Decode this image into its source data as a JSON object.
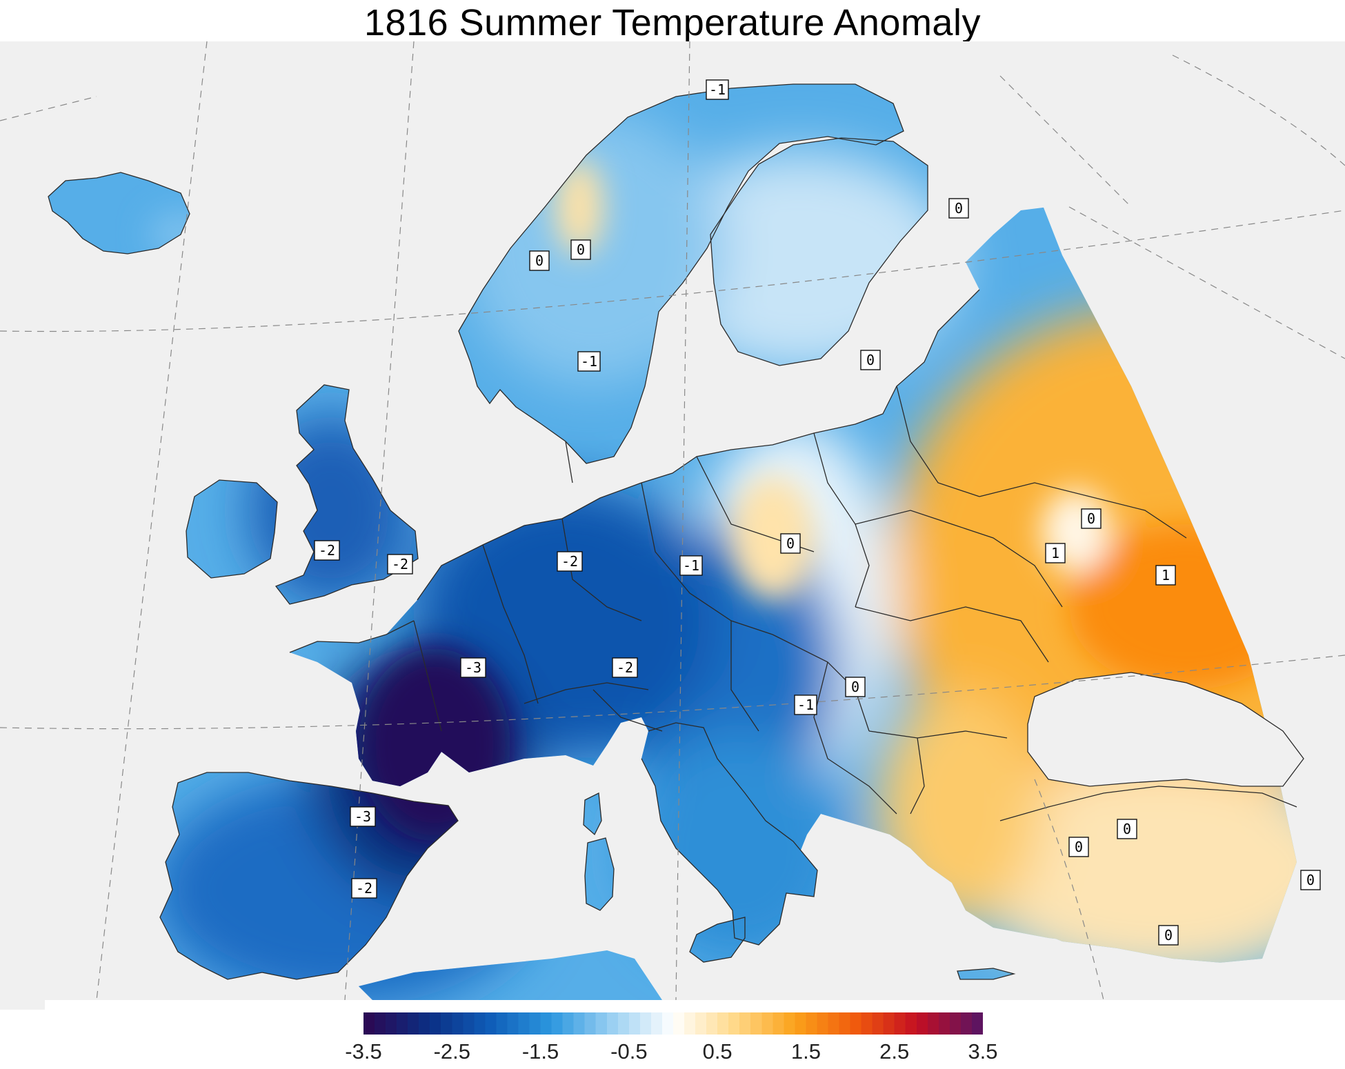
{
  "title": "1816 Summer Temperature Anomaly",
  "colorbar": {
    "min": -3.5,
    "max": 3.5,
    "tick_labels": [
      "-3.5",
      "-2.5",
      "-1.5",
      "-0.5",
      "0.5",
      "1.5",
      "2.5",
      "3.5"
    ],
    "stops": [
      "#2a0a55",
      "#0b2f84",
      "#0f5db8",
      "#2c97df",
      "#9bd0f2",
      "#ffffff",
      "#ffd98a",
      "#fba21a",
      "#f05a0d",
      "#c40f22",
      "#5e1460"
    ]
  },
  "colors": {
    "ocean": "#f0f0f0",
    "outside": "#ffffff",
    "border": "#2a2a2a"
  },
  "contour_labels": [
    {
      "text": "-1"
    },
    {
      "text": "0"
    },
    {
      "text": "0"
    },
    {
      "text": "0"
    },
    {
      "text": "-1"
    },
    {
      "text": "0"
    },
    {
      "text": "-2"
    },
    {
      "text": "-2"
    },
    {
      "text": "-2"
    },
    {
      "text": "-1"
    },
    {
      "text": "0"
    },
    {
      "text": "0"
    },
    {
      "text": "1"
    },
    {
      "text": "1"
    },
    {
      "text": "-3"
    },
    {
      "text": "-2"
    },
    {
      "text": "0"
    },
    {
      "text": "-1"
    },
    {
      "text": "-3"
    },
    {
      "text": "-2"
    },
    {
      "text": "0"
    },
    {
      "text": "0"
    },
    {
      "text": "0"
    },
    {
      "text": "0"
    }
  ]
}
